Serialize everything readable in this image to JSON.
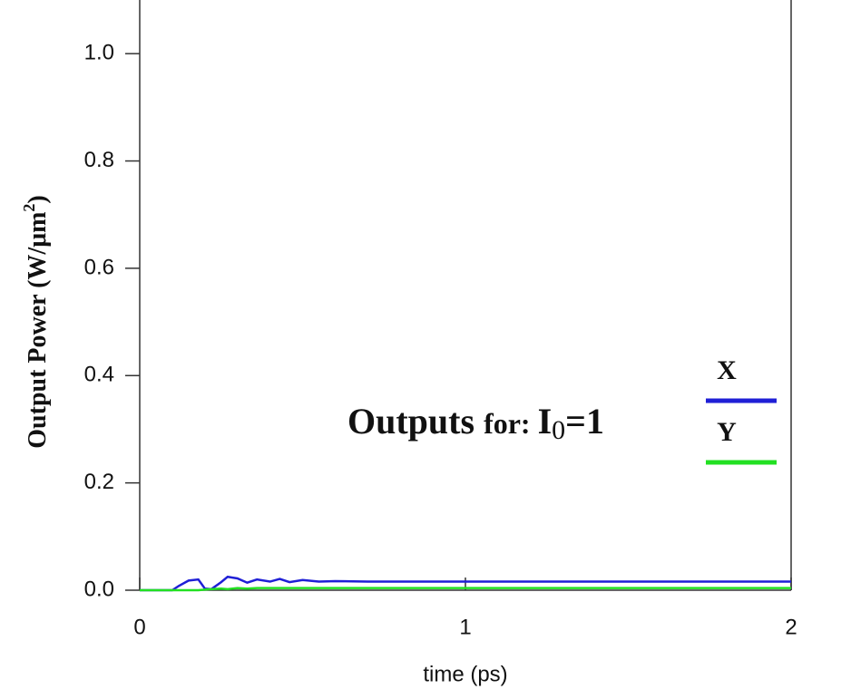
{
  "chart_data": {
    "type": "line",
    "xlabel": "time (ps)",
    "ylabel": {
      "parts": [
        "Output Power (W/μm",
        "2",
        ")"
      ]
    },
    "annotation": {
      "parts": [
        "Outputs",
        "for:",
        "I",
        "0",
        "=1"
      ]
    },
    "x": [
      0,
      0.1,
      0.12,
      0.15,
      0.18,
      0.2,
      0.22,
      0.25,
      0.27,
      0.3,
      0.33,
      0.36,
      0.4,
      0.43,
      0.46,
      0.5,
      0.55,
      0.6,
      0.7,
      0.8,
      1.0,
      1.5,
      2.0
    ],
    "series": [
      {
        "name": "X",
        "color": "#1f1fd6",
        "values": [
          0,
          0,
          0.008,
          0.018,
          0.02,
          0.003,
          0.002,
          0.015,
          0.025,
          0.022,
          0.014,
          0.02,
          0.016,
          0.021,
          0.015,
          0.019,
          0.016,
          0.017,
          0.016,
          0.016,
          0.016,
          0.016,
          0.016
        ]
      },
      {
        "name": "Y",
        "color": "#22e022",
        "values": [
          0,
          0,
          0,
          0,
          0,
          0.001,
          0.002,
          0.003,
          0.002,
          0.004,
          0.003,
          0.004,
          0.004,
          0.004,
          0.004,
          0.004,
          0.004,
          0.004,
          0.004,
          0.004,
          0.004,
          0.004,
          0.004
        ]
      }
    ],
    "xlim": [
      0,
      2
    ],
    "xticks": [
      0,
      1,
      2
    ],
    "ylim": [
      0,
      1.1
    ],
    "yticks": [
      {
        "value": 0,
        "label": "0.0"
      },
      {
        "value": 0.2,
        "label": "0.2"
      },
      {
        "value": 0.4,
        "label": "0.4"
      },
      {
        "value": 0.6,
        "label": "0.6"
      },
      {
        "value": 0.8,
        "label": "0.8"
      },
      {
        "value": 1,
        "label": "1.0"
      }
    ],
    "legend": "right"
  }
}
